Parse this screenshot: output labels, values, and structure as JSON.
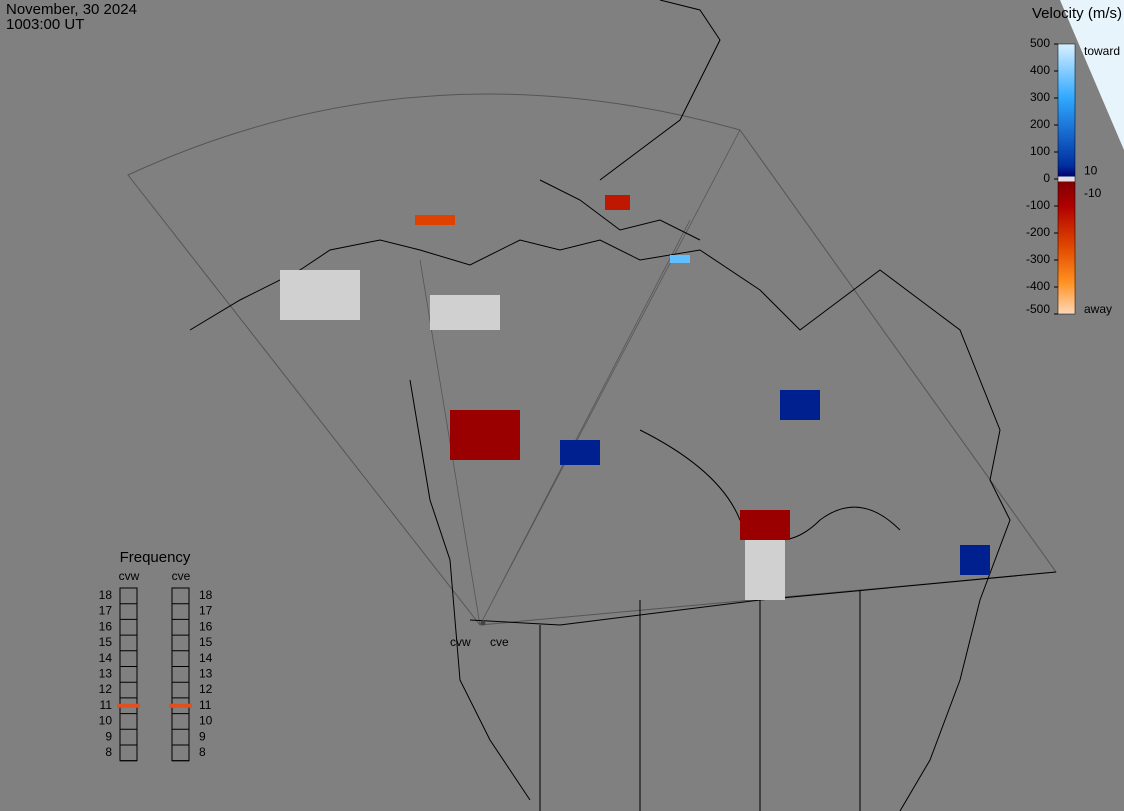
{
  "header": {
    "date": "November, 30 2024",
    "time": "1003:00 UT"
  },
  "colorbar": {
    "title": "Velocity (m/s)",
    "ticks": [
      500,
      400,
      300,
      200,
      100,
      0,
      -100,
      -200,
      -300,
      -400,
      -500
    ],
    "inner_ticks": [
      10,
      -10
    ],
    "range": [
      -500,
      500
    ],
    "top_label": "toward",
    "bottom_label": "away"
  },
  "frequency": {
    "title": "Frequency",
    "radars": [
      "cvw",
      "cve"
    ],
    "ticks": [
      18,
      17,
      16,
      15,
      14,
      13,
      12,
      11,
      10,
      9,
      8
    ],
    "current": [
      11,
      11
    ],
    "marker_color": "#e05020"
  },
  "map": {
    "radar_labels": [
      "cvw",
      "cve"
    ]
  }
}
